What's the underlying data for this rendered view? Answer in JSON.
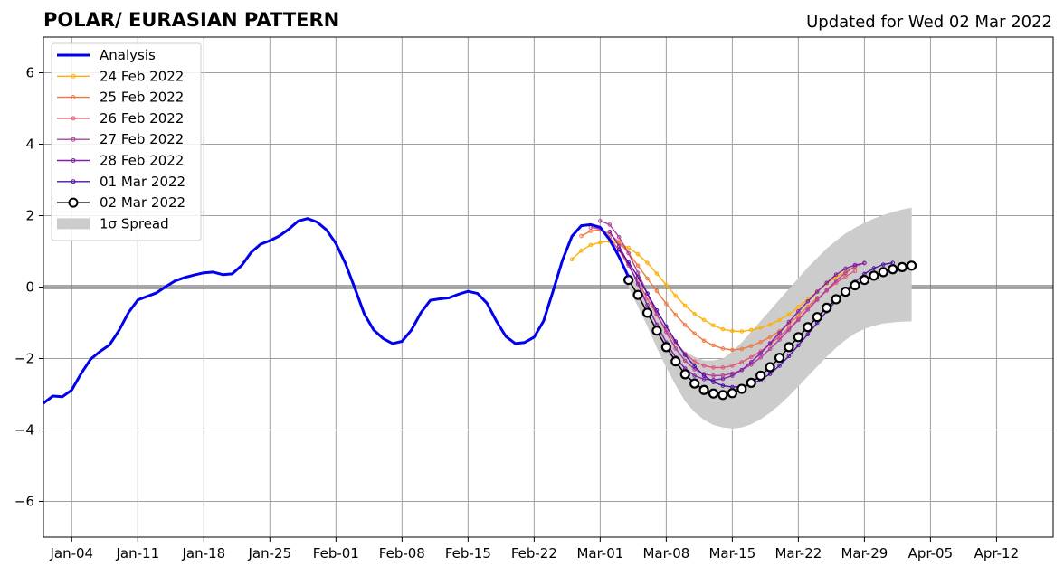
{
  "chart_data": {
    "type": "line",
    "title": "POLAR/ EURASIAN  PATTERN",
    "subtitle": "Updated for Wed 02 Mar 2022",
    "xlabel": "",
    "ylabel": "",
    "x_axis": {
      "start": "2022-01-01",
      "end": "2022-04-18",
      "ticks": [
        {
          "date": "2022-01-04",
          "label": "Jan-04"
        },
        {
          "date": "2022-01-11",
          "label": "Jan-11"
        },
        {
          "date": "2022-01-18",
          "label": "Jan-18"
        },
        {
          "date": "2022-01-25",
          "label": "Jan-25"
        },
        {
          "date": "2022-02-01",
          "label": "Feb-01"
        },
        {
          "date": "2022-02-08",
          "label": "Feb-08"
        },
        {
          "date": "2022-02-15",
          "label": "Feb-15"
        },
        {
          "date": "2022-02-22",
          "label": "Feb-22"
        },
        {
          "date": "2022-03-01",
          "label": "Mar-01"
        },
        {
          "date": "2022-03-08",
          "label": "Mar-08"
        },
        {
          "date": "2022-03-15",
          "label": "Mar-15"
        },
        {
          "date": "2022-03-22",
          "label": "Mar-22"
        },
        {
          "date": "2022-03-29",
          "label": "Mar-29"
        },
        {
          "date": "2022-04-05",
          "label": "Apr-05"
        },
        {
          "date": "2022-04-12",
          "label": "Apr-12"
        }
      ]
    },
    "y_axis": {
      "ylim": [
        -7,
        7
      ],
      "ticks": [
        {
          "value": 6,
          "label": "6"
        },
        {
          "value": 4,
          "label": "4"
        },
        {
          "value": 2,
          "label": "2"
        },
        {
          "value": 0,
          "label": "0"
        },
        {
          "value": -2,
          "label": "−2"
        },
        {
          "value": -4,
          "label": "−4"
        },
        {
          "value": -6,
          "label": "−6"
        }
      ]
    },
    "grid": true,
    "zero_line": true,
    "legend_position": "top-left",
    "analysis": {
      "name": "Analysis",
      "color": "#0000ee",
      "start_date": "2022-01-01",
      "values": [
        -3.25,
        -3.05,
        -3.07,
        -2.88,
        -2.42,
        -2.02,
        -1.8,
        -1.62,
        -1.22,
        -0.72,
        -0.36,
        -0.26,
        -0.16,
        0.02,
        0.18,
        0.27,
        0.34,
        0.4,
        0.42,
        0.35,
        0.37,
        0.6,
        0.97,
        1.2,
        1.3,
        1.43,
        1.62,
        1.85,
        1.92,
        1.82,
        1.6,
        1.22,
        0.66,
        -0.03,
        -0.75,
        -1.2,
        -1.44,
        -1.58,
        -1.52,
        -1.2,
        -0.72,
        -0.37,
        -0.33,
        -0.3,
        -0.2,
        -0.12,
        -0.18,
        -0.45,
        -0.95,
        -1.38,
        -1.58,
        -1.55,
        -1.4,
        -0.95,
        -0.12,
        0.75,
        1.42,
        1.72,
        1.75,
        1.67,
        1.33,
        0.85,
        0.28
      ]
    },
    "series": [
      {
        "name": "24 Feb 2022",
        "color": "#ffb000",
        "start_date": "2022-02-26",
        "values": [
          0.78,
          1.02,
          1.18,
          1.25,
          1.28,
          1.22,
          1.1,
          0.92,
          0.68,
          0.38,
          0.06,
          -0.25,
          -0.52,
          -0.75,
          -0.92,
          -1.07,
          -1.18,
          -1.23,
          -1.24,
          -1.2,
          -1.14,
          -1.05,
          -0.92,
          -0.76,
          -0.56,
          -0.35,
          -0.12,
          0.1,
          0.28,
          0.43,
          0.56
        ]
      },
      {
        "name": "25 Feb 2022",
        "color": "#f07840",
        "start_date": "2022-02-27",
        "values": [
          1.43,
          1.57,
          1.6,
          1.49,
          1.26,
          0.95,
          0.6,
          0.24,
          -0.11,
          -0.47,
          -0.78,
          -1.06,
          -1.3,
          -1.5,
          -1.63,
          -1.72,
          -1.76,
          -1.73,
          -1.65,
          -1.54,
          -1.4,
          -1.23,
          -1.03,
          -0.8,
          -0.55,
          -0.3
        ]
      },
      {
        "name": "26 Feb 2022",
        "color": "#e05878",
        "start_date": "2022-02-28",
        "values": [
          1.67,
          1.62,
          1.38,
          1.03,
          0.6,
          0.15,
          -0.32,
          -0.77,
          -1.2,
          -1.57,
          -1.87,
          -2.08,
          -2.2,
          -2.25,
          -2.25,
          -2.2,
          -2.1,
          -1.96,
          -1.8,
          -1.6,
          -1.38,
          -1.15,
          -0.9,
          -0.63,
          -0.36,
          -0.1,
          0.12,
          0.3,
          0.45
        ]
      },
      {
        "name": "27 Feb 2022",
        "color": "#b0409a",
        "start_date": "2022-03-01",
        "values": [
          1.85,
          1.75,
          1.4,
          0.95,
          0.4,
          -0.18,
          -0.75,
          -1.26,
          -1.72,
          -2.06,
          -2.3,
          -2.43,
          -2.48,
          -2.47,
          -2.42,
          -2.32,
          -2.17,
          -1.97,
          -1.73,
          -1.47,
          -1.2,
          -0.92,
          -0.63,
          -0.35,
          -0.08,
          0.18,
          0.4,
          0.58,
          0.68
        ]
      },
      {
        "name": "28 Feb 2022",
        "color": "#8020a8",
        "start_date": "2022-03-02",
        "values": [
          1.55,
          1.15,
          0.65,
          0.08,
          -0.5,
          -1.05,
          -1.55,
          -1.97,
          -2.28,
          -2.48,
          -2.58,
          -2.6,
          -2.57,
          -2.48,
          -2.32,
          -2.1,
          -1.85,
          -1.57,
          -1.28,
          -0.98,
          -0.68,
          -0.4,
          -0.13,
          0.12,
          0.35,
          0.52,
          0.62,
          0.67
        ]
      },
      {
        "name": "01 Mar 2022",
        "color": "#5010a0",
        "start_date": "2022-03-03",
        "values": [
          1.05,
          0.7,
          0.28,
          -0.18,
          -0.65,
          -1.1,
          -1.52,
          -1.9,
          -2.22,
          -2.48,
          -2.66,
          -2.76,
          -2.8,
          -2.78,
          -2.72,
          -2.6,
          -2.43,
          -2.2,
          -1.93,
          -1.63,
          -1.32,
          -1.0,
          -0.68,
          -0.38,
          -0.1,
          0.15,
          0.37,
          0.53,
          0.63,
          0.68
        ]
      },
      {
        "name": "02 Mar 2022",
        "color": "#000000",
        "start_date": "2022-03-04",
        "values": [
          0.2,
          -0.22,
          -0.72,
          -1.22,
          -1.68,
          -2.08,
          -2.44,
          -2.7,
          -2.88,
          -2.98,
          -3.02,
          -2.97,
          -2.85,
          -2.68,
          -2.48,
          -2.24,
          -1.98,
          -1.68,
          -1.4,
          -1.12,
          -0.84,
          -0.58,
          -0.34,
          -0.13,
          0.05,
          0.2,
          0.32,
          0.42,
          0.5,
          0.56,
          0.6
        ]
      }
    ],
    "spread": {
      "name": "1σ Spread",
      "color": "#cccccc",
      "start_date": "2022-03-04",
      "upper": [
        0.4,
        0.1,
        -0.3,
        -0.75,
        -1.2,
        -1.55,
        -1.8,
        -1.95,
        -2.05,
        -2.05,
        -2.0,
        -1.8,
        -1.55,
        -1.25,
        -0.95,
        -0.65,
        -0.35,
        -0.05,
        0.25,
        0.55,
        0.82,
        1.08,
        1.3,
        1.5,
        1.66,
        1.8,
        1.92,
        2.02,
        2.1,
        2.17,
        2.22
      ],
      "lower": [
        0.0,
        -0.55,
        -1.1,
        -1.7,
        -2.25,
        -2.75,
        -3.2,
        -3.5,
        -3.72,
        -3.86,
        -3.93,
        -3.96,
        -3.93,
        -3.84,
        -3.7,
        -3.52,
        -3.3,
        -3.05,
        -2.78,
        -2.5,
        -2.22,
        -1.95,
        -1.7,
        -1.48,
        -1.3,
        -1.17,
        -1.08,
        -1.02,
        -0.99,
        -0.97,
        -0.96
      ]
    },
    "legend": [
      {
        "label": "Analysis",
        "color": "#0000ee",
        "kind": "thick-line"
      },
      {
        "label": "24 Feb 2022",
        "color": "#ffb000",
        "kind": "line-dot"
      },
      {
        "label": "25 Feb 2022",
        "color": "#f07840",
        "kind": "line-dot"
      },
      {
        "label": "26 Feb 2022",
        "color": "#e05878",
        "kind": "line-dot"
      },
      {
        "label": "27 Feb 2022",
        "color": "#b0409a",
        "kind": "line-dot"
      },
      {
        "label": "28 Feb 2022",
        "color": "#8020a8",
        "kind": "line-dot"
      },
      {
        "label": "01 Mar 2022",
        "color": "#5010a0",
        "kind": "line-dot"
      },
      {
        "label": "02 Mar 2022",
        "color": "#000000",
        "kind": "line-circle"
      },
      {
        "label": "1σ Spread",
        "color": "#cccccc",
        "kind": "patch"
      }
    ]
  }
}
